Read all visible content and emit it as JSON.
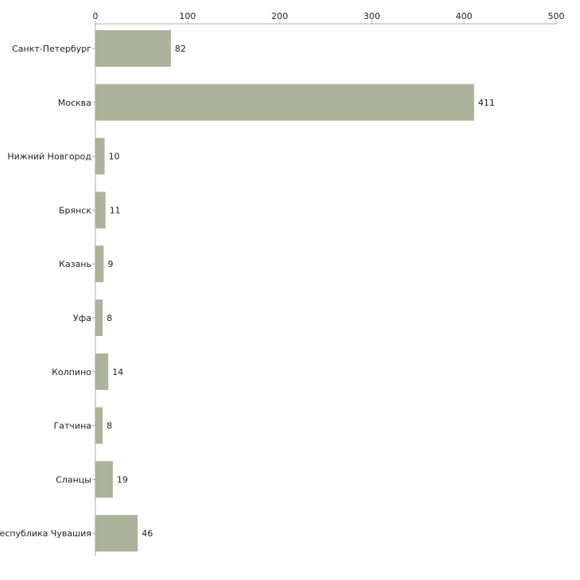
{
  "chart_data": {
    "type": "bar",
    "orientation": "horizontal",
    "categories": [
      "Санкт-Петербург",
      "Москва",
      "Нижний Новгород",
      "Брянск",
      "Казань",
      "Уфа",
      "Колпино",
      "Гатчина",
      "Сланцы",
      "Республика Чувашия"
    ],
    "values": [
      82,
      411,
      10,
      11,
      9,
      8,
      14,
      8,
      19,
      46
    ],
    "xticks": [
      0,
      100,
      200,
      300,
      400,
      500
    ],
    "xlim": [
      0,
      500
    ],
    "axis_position": "top",
    "grid": false,
    "title": "",
    "xlabel": "",
    "ylabel": "",
    "bar_color": "#adb29a",
    "axis_color": "#aaaaaa"
  }
}
